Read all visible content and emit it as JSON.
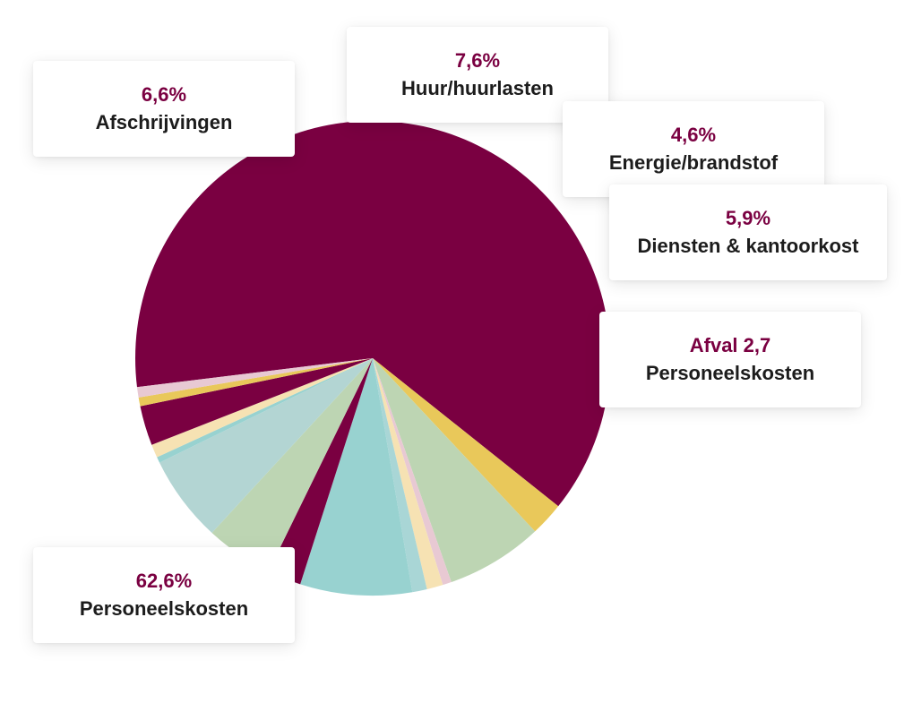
{
  "colors": {
    "accent": "#7a0041",
    "label_dark": "#1c1c1c"
  },
  "chart_data": {
    "type": "pie",
    "slices": [
      {
        "value": 62.6,
        "color": "#7a0041"
      },
      {
        "value": 2.3,
        "color": "#e9c85a"
      },
      {
        "value": 6.6,
        "color": "#bdd5b3"
      },
      {
        "value": 0.6,
        "color": "#e8c9d3"
      },
      {
        "value": 1.1,
        "color": "#f6e2b3"
      },
      {
        "value": 1.0,
        "color": "#a9d6d6"
      },
      {
        "value": 7.6,
        "color": "#98d2d0"
      },
      {
        "value": 2.3,
        "color": "#7a0041"
      },
      {
        "value": 4.6,
        "color": "#bdd5b3"
      },
      {
        "value": 5.9,
        "color": "#b3d5d3"
      },
      {
        "value": 0.4,
        "color": "#98d2d0"
      },
      {
        "value": 0.9,
        "color": "#f6e2b3"
      },
      {
        "value": 2.7,
        "color": "#7a0041"
      },
      {
        "value": 0.6,
        "color": "#e9c85a"
      },
      {
        "value": 0.7,
        "color": "#e8c9d3"
      }
    ],
    "labels": [
      {
        "pct": "62,6%",
        "name": "Personeelskosten"
      },
      {
        "pct": "6,6%",
        "name": "Afschrijvingen"
      },
      {
        "pct": "7,6%",
        "name": "Huur/huurlasten"
      },
      {
        "pct": "4,6%",
        "name": "Energie/brandstof"
      },
      {
        "pct": "5,9%",
        "name": "Diensten & kantoorkost"
      },
      {
        "pct": "Afval 2,7",
        "name": "Personeelskosten"
      }
    ]
  }
}
